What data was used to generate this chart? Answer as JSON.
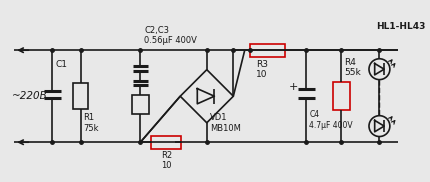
{
  "bg_color": "#e8e8e8",
  "line_color": "#1a1a1a",
  "red_color": "#cc0000",
  "labels": {
    "vac": "~220B",
    "c1": "C1",
    "r1": "R1\n75k",
    "r2": "R2\n10",
    "c2c3": "C2,C3\n0.56μF 400V",
    "vd1": "VD1\nMB10M",
    "c4": "C4\n4.7μF 400V",
    "r3": "R3\n10",
    "r4": "R4\n55k",
    "hl": "HL1-HL43"
  }
}
